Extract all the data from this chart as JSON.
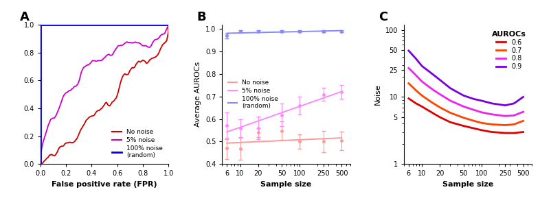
{
  "panel_A": {
    "label": "A",
    "no_noise_color": "#CC0000",
    "noise5_color": "#CC00CC",
    "noise100_color": "#0000EE",
    "xlabel": "False positive rate (FPR)",
    "yticks": [
      0.0,
      0.2,
      0.4,
      0.6,
      0.8,
      1.0
    ],
    "xticks": [
      0.0,
      0.2,
      0.4,
      0.6,
      0.8,
      1.0
    ]
  },
  "panel_B": {
    "label": "B",
    "no_noise_color": "#FF9999",
    "noise5_color": "#FF88FF",
    "noise100_color": "#8888FF",
    "xlabel": "Sample size",
    "ylabel": "Average AUROCs",
    "sample_sizes": [
      6,
      10,
      20,
      50,
      100,
      250,
      500
    ],
    "no_noise_mean": [
      0.47,
      0.468,
      0.54,
      0.548,
      0.5,
      0.5,
      0.503
    ],
    "no_noise_err": [
      0.048,
      0.05,
      0.02,
      0.042,
      0.032,
      0.048,
      0.04
    ],
    "noise5_mean": [
      0.57,
      0.56,
      0.56,
      0.618,
      0.66,
      0.71,
      0.72
    ],
    "noise5_err": [
      0.06,
      0.04,
      0.05,
      0.05,
      0.04,
      0.03,
      0.03
    ],
    "noise100_mean": [
      0.97,
      0.99,
      0.99,
      0.99,
      0.99,
      0.99,
      0.99
    ],
    "noise100_err": [
      0.01,
      0.005,
      0.005,
      0.005,
      0.005,
      0.005,
      0.005
    ],
    "ylim": [
      0.4,
      1.02
    ],
    "yticks": [
      0.4,
      0.5,
      0.6,
      0.7,
      0.8,
      0.9,
      1.0
    ]
  },
  "panel_C": {
    "label": "C",
    "xlabel": "Sample size",
    "ylabel": "Noise",
    "legend_title": "AUROCs",
    "auroc_labels": [
      "0.6",
      "0.7",
      "0.8",
      "0.9"
    ],
    "auroc_colors": [
      "#DD0000",
      "#FF4400",
      "#EE22EE",
      "#7700DD"
    ],
    "sample_sizes": [
      6,
      8,
      10,
      15,
      20,
      30,
      50,
      75,
      100,
      150,
      250,
      350,
      500
    ],
    "noise_06": [
      9.5,
      8.0,
      7.2,
      5.8,
      5.0,
      4.2,
      3.7,
      3.4,
      3.2,
      3.0,
      2.9,
      2.9,
      3.0
    ],
    "noise_07": [
      16.0,
      12.5,
      10.5,
      8.2,
      7.0,
      5.8,
      4.9,
      4.4,
      4.1,
      3.9,
      3.8,
      3.9,
      4.4
    ],
    "noise_08": [
      27.0,
      21.0,
      17.0,
      13.0,
      11.0,
      8.8,
      7.2,
      6.4,
      5.9,
      5.5,
      5.2,
      5.3,
      6.0
    ],
    "noise_09": [
      49.0,
      37.0,
      29.0,
      22.0,
      18.0,
      13.5,
      10.5,
      9.3,
      8.8,
      8.0,
      7.5,
      8.0,
      10.0
    ],
    "ylim_log": [
      1,
      100
    ],
    "yticks": [
      1,
      5,
      10,
      25,
      50,
      100
    ],
    "xticks": [
      6,
      10,
      20,
      50,
      100,
      250,
      500
    ]
  }
}
